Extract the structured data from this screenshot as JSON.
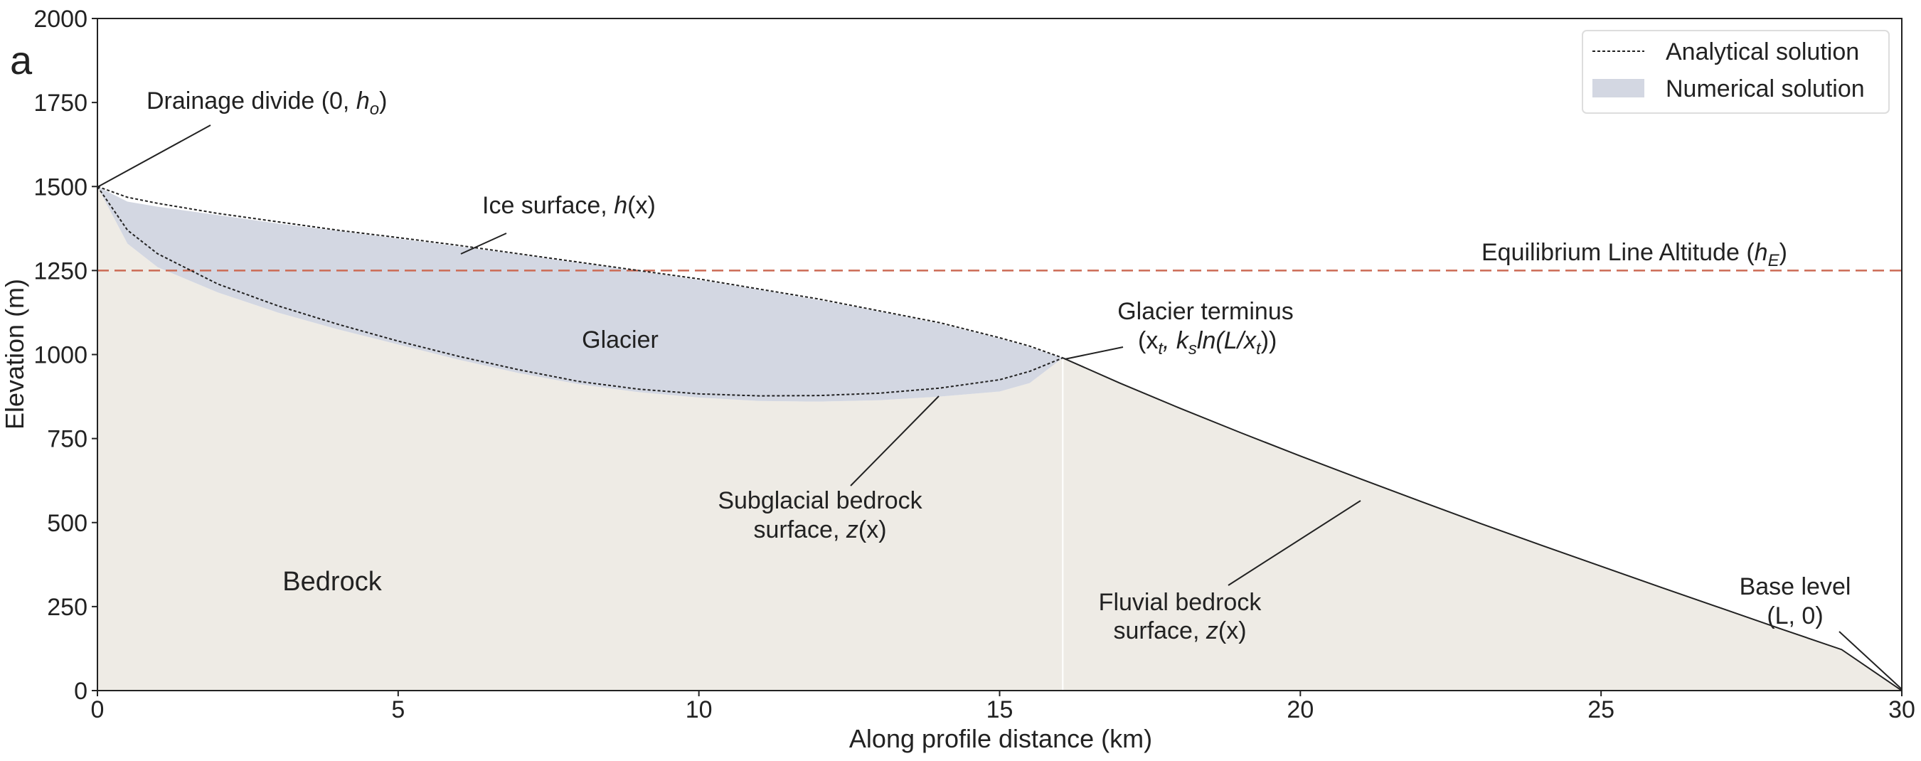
{
  "chart_data": {
    "type": "area",
    "panel_label": "a",
    "xlabel": "Along profile distance (km)",
    "ylabel": "Elevation (m)",
    "xlim": [
      0,
      30
    ],
    "ylim": [
      0,
      2000
    ],
    "xticks": [
      0,
      5,
      10,
      15,
      20,
      25,
      30
    ],
    "yticks": [
      0,
      250,
      500,
      750,
      1000,
      1250,
      1500,
      1750,
      2000
    ],
    "grid": false,
    "legend_position": "top-right",
    "legend": [
      {
        "label": "Analytical solution",
        "style": "dotted-line",
        "color": "#222222"
      },
      {
        "label": "Numerical solution",
        "style": "filled-patch",
        "color": "#d3d7e2"
      }
    ],
    "equilibrium_line_altitude": 1250,
    "ela_label": {
      "text": "Equilibrium Line Altitude (",
      "var": "h",
      "sub": "E",
      "close": ")"
    },
    "glacier_terminus_x": 16.05,
    "colors": {
      "bedrock": "#eeebe5",
      "glacier": "#d3d7e2",
      "ela": "#cc6b55",
      "line": "#222222"
    },
    "series": [
      {
        "name": "Analytical solution",
        "x": [
          0,
          0.5,
          1,
          2,
          3,
          4,
          5,
          6,
          7,
          8,
          9,
          10,
          11,
          12,
          13,
          14,
          15,
          15.5,
          16.05
        ],
        "ice_surface": [
          1500,
          1468,
          1450,
          1420,
          1395,
          1370,
          1348,
          1325,
          1300,
          1275,
          1250,
          1225,
          1195,
          1165,
          1130,
          1095,
          1050,
          1025,
          990
        ],
        "subglacial_bedrock": [
          1500,
          1370,
          1300,
          1210,
          1145,
          1090,
          1040,
          995,
          955,
          920,
          897,
          883,
          877,
          878,
          885,
          900,
          925,
          950,
          990
        ]
      },
      {
        "name": "Numerical solution",
        "x": [
          0,
          0.5,
          1,
          2,
          3,
          4,
          5,
          6,
          7,
          8,
          9,
          10,
          11,
          12,
          13,
          14,
          15,
          15.5,
          16.05
        ],
        "ice_surface": [
          1500,
          1455,
          1440,
          1415,
          1390,
          1368,
          1345,
          1322,
          1298,
          1273,
          1248,
          1222,
          1193,
          1162,
          1128,
          1092,
          1048,
          1022,
          990
        ],
        "subglacial_bedrock": [
          1500,
          1330,
          1260,
          1185,
          1125,
          1075,
          1030,
          985,
          945,
          912,
          888,
          872,
          862,
          860,
          864,
          875,
          890,
          915,
          990
        ]
      }
    ],
    "fluvial_bedrock": {
      "x": [
        16.05,
        17,
        18,
        19,
        20,
        21,
        22,
        23,
        24,
        25,
        26,
        27,
        28,
        29,
        29.5,
        30
      ],
      "z": [
        990,
        915,
        840,
        768,
        698,
        630,
        563,
        497,
        433,
        370,
        307,
        245,
        183,
        122,
        61,
        0
      ]
    },
    "annotations": {
      "drainage_divide": {
        "text": "Drainage divide (0,",
        "var": "h",
        "sub": "o",
        "close": ")"
      },
      "ice_surface": {
        "text": "Ice surface,",
        "var": "h",
        "args": "(x)"
      },
      "glacier": "Glacier",
      "glacier_terminus": {
        "line1": "Glacier terminus",
        "line2": "(x",
        "l2_sub1": "t",
        "l2_mid": ", k",
        "l2_sub2": "s",
        "l2_rest": "ln(L/x",
        "l2_sub3": "t",
        "l2_end": "))"
      },
      "subglacial_bedrock": {
        "line1": "Subglacial bedrock",
        "line2": "surface,",
        "var": "z",
        "args": "(x)"
      },
      "bedrock": "Bedrock",
      "fluvial_bedrock": {
        "line1": "Fluvial bedrock",
        "line2": "surface,",
        "var": "z",
        "args": "(x)"
      },
      "base_level": {
        "line1": "Base level",
        "line2": "(L, 0)"
      }
    }
  }
}
